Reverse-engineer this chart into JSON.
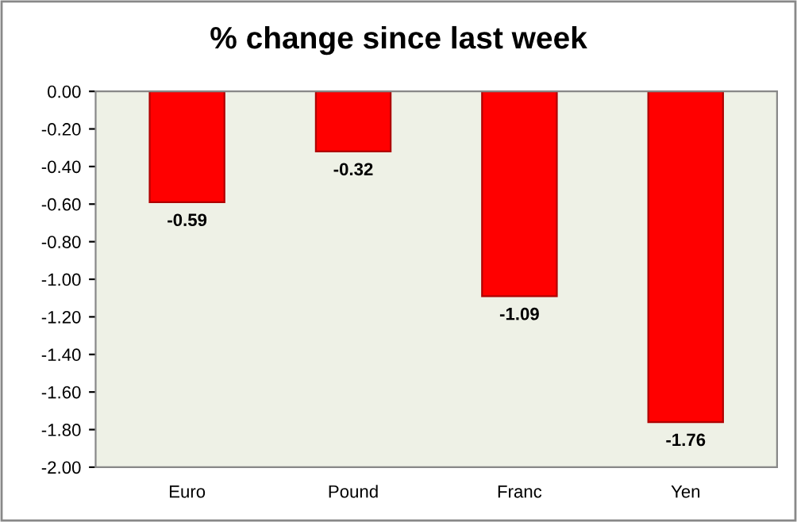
{
  "chart_data": {
    "type": "bar",
    "title": "% change since last week",
    "categories": [
      "Euro",
      "Pound",
      "Franc",
      "Yen"
    ],
    "values": [
      -0.59,
      -0.32,
      -1.09,
      -1.76
    ],
    "color": "#ff0000",
    "ylim": [
      -2.0,
      0.0
    ],
    "yticks": [
      {
        "value": 0.0,
        "label": "0.00"
      },
      {
        "value": -0.2,
        "label": "-0.20"
      },
      {
        "value": -0.4,
        "label": "-0.40"
      },
      {
        "value": -0.6,
        "label": "-0.60"
      },
      {
        "value": -0.8,
        "label": "-0.80"
      },
      {
        "value": -1.0,
        "label": "-1.00"
      },
      {
        "value": -1.2,
        "label": "-1.20"
      },
      {
        "value": -1.4,
        "label": "-1.40"
      },
      {
        "value": -1.6,
        "label": "-1.60"
      },
      {
        "value": -1.8,
        "label": "-1.80"
      },
      {
        "value": -2.0,
        "label": "-2.00"
      }
    ],
    "data_labels": true,
    "grid": false,
    "legend": false
  }
}
